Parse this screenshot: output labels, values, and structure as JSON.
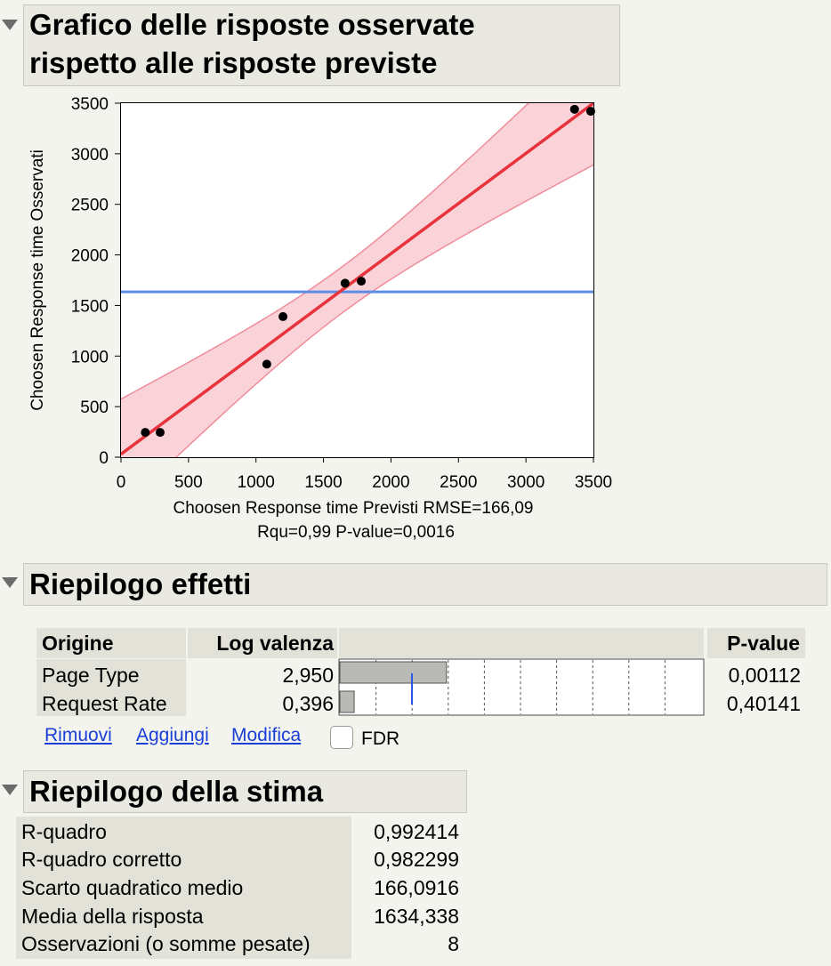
{
  "sections": {
    "actual_by_predicted": {
      "title_line1": "Grafico delle risposte osservate",
      "title_line2": "rispetto alle risposte previste"
    },
    "effect_summary": {
      "title": "Riepilogo effetti",
      "headers": {
        "source": "Origine",
        "logworth": "Log valenza",
        "pvalue": "P-value"
      },
      "rows": [
        {
          "source": "Page Type",
          "logworth": "2,950",
          "logworth_value": 2.95,
          "pvalue": "0,00112"
        },
        {
          "source": "Request Rate",
          "logworth": "0,396",
          "logworth_value": 0.396,
          "pvalue": "0,40141"
        }
      ],
      "links": {
        "remove": "Rimuovi",
        "add": "Aggiungi",
        "edit": "Modifica"
      },
      "fdr_label": "FDR",
      "fdr_checked": false
    },
    "summary_of_fit": {
      "title": "Riepilogo della stima",
      "rows": [
        {
          "label": "R-quadro",
          "value": "0,992414"
        },
        {
          "label": "R-quadro corretto",
          "value": "0,982299"
        },
        {
          "label": "Scarto quadratico medio",
          "value": "166,0916"
        },
        {
          "label": "Media della risposta",
          "value": "1634,338"
        },
        {
          "label": "Osservazioni (o somme pesate)",
          "value": "8"
        }
      ]
    }
  },
  "chart_data": {
    "type": "scatter",
    "xlabel_line1": "Choosen Response time Previsti RMSE=166,09",
    "xlabel_line2": "Rqu=0,99 P-value=0,0016",
    "ylabel": "Choosen Response time Osservati",
    "xlim": [
      0,
      3500
    ],
    "ylim": [
      0,
      3500
    ],
    "xticks": [
      0,
      500,
      1000,
      1500,
      2000,
      2500,
      3000,
      3500
    ],
    "yticks": [
      0,
      500,
      1000,
      1500,
      2000,
      2500,
      3000,
      3500
    ],
    "points": [
      {
        "x": 180,
        "y": 245
      },
      {
        "x": 290,
        "y": 245
      },
      {
        "x": 1080,
        "y": 920
      },
      {
        "x": 1200,
        "y": 1390
      },
      {
        "x": 1660,
        "y": 1720
      },
      {
        "x": 1780,
        "y": 1740
      },
      {
        "x": 3360,
        "y": 3440
      },
      {
        "x": 3480,
        "y": 3420
      }
    ],
    "fit_line": {
      "x0": 0,
      "y0": 30,
      "x1": 3500,
      "y1": 3500,
      "color": "#e8323c"
    },
    "mean_line": {
      "y": 1634.338,
      "color": "#5b8de6"
    },
    "confidence_band_color": "#f9d3d8",
    "confidence_band_edge": "#f08d9a",
    "point_color": "#000000"
  }
}
